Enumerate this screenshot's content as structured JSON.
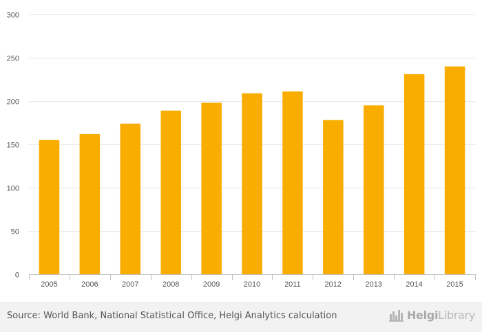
{
  "chart_data": {
    "type": "bar",
    "categories": [
      "2005",
      "2006",
      "2007",
      "2008",
      "2009",
      "2010",
      "2011",
      "2012",
      "2013",
      "2014",
      "2015"
    ],
    "values": [
      155,
      162,
      174,
      189,
      198,
      209,
      211,
      178,
      195,
      231,
      240
    ],
    "ylim": [
      0,
      300
    ],
    "yticks": [
      0,
      50,
      100,
      150,
      200,
      250,
      300
    ],
    "ytick_labels": [
      "0",
      "50",
      "100",
      "150",
      "200",
      "250",
      "300"
    ],
    "title": "",
    "xlabel": "",
    "ylabel": "",
    "grid": true,
    "bar_color": "#f9ad00",
    "grid_color": "#e6e6e6",
    "axis_color": "#c0c0c0",
    "tick_text_color": "#555555"
  },
  "footer": {
    "source_text": "Source: World Bank, National Statistical Office, Helgi Analytics calculation",
    "brand_name_bold": "Helgi",
    "brand_name_rest": "Library",
    "brand_icon": "helgi-library-logo-icon"
  }
}
